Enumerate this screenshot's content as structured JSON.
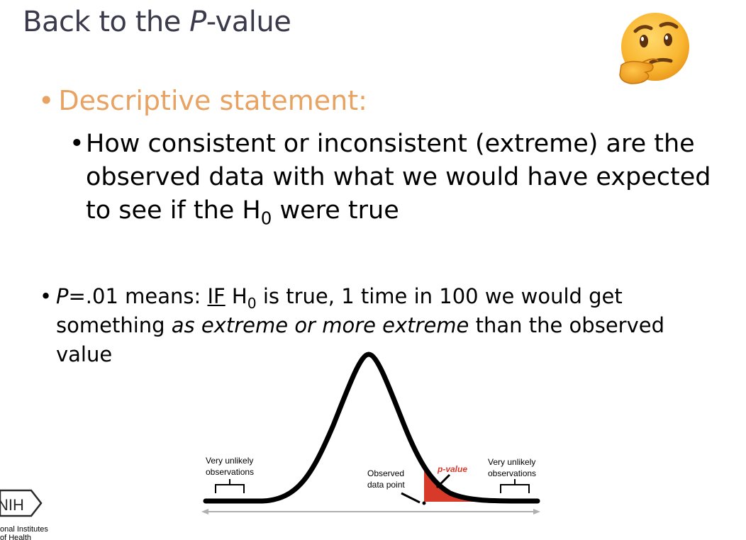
{
  "slide": {
    "title_prefix": "Back to the ",
    "title_italic": "P",
    "title_suffix": "-value",
    "bullet_heading": "Descriptive statement:",
    "sub_bullet": {
      "part1": "How consistent or inconsistent (extreme) are the observed data with what we would have expected to see if the H",
      "sub": "0",
      "part2": " were true"
    },
    "bullet2": {
      "p_italic": "P",
      "part1": "=.01 means: ",
      "if_underlined": "IF",
      "part2": " H",
      "sub": "0",
      "part3": " is true, 1 time in 100 we would get something ",
      "italic": "as extreme or more extreme",
      "part4": " than the observed value"
    }
  },
  "diagram": {
    "left_label_line1": "Very unlikely",
    "left_label_line2": "observations",
    "observed_line1": "Observed",
    "observed_line2": "data point",
    "pvalue_label": "p-value",
    "right_label_line1": "Very unlikely",
    "right_label_line2": "observations",
    "tail_color": "#d83a2a",
    "pvalue_color": "#d83a2a"
  },
  "logo": {
    "text": "NIH",
    "caption_line1": "onal Institutes",
    "caption_line2": "of Health"
  },
  "colors": {
    "title": "#3a3a4a",
    "heading": "#e8a262"
  },
  "icons": {
    "emoji": "thinking-face-icon",
    "bullet": "bullet-dot"
  }
}
